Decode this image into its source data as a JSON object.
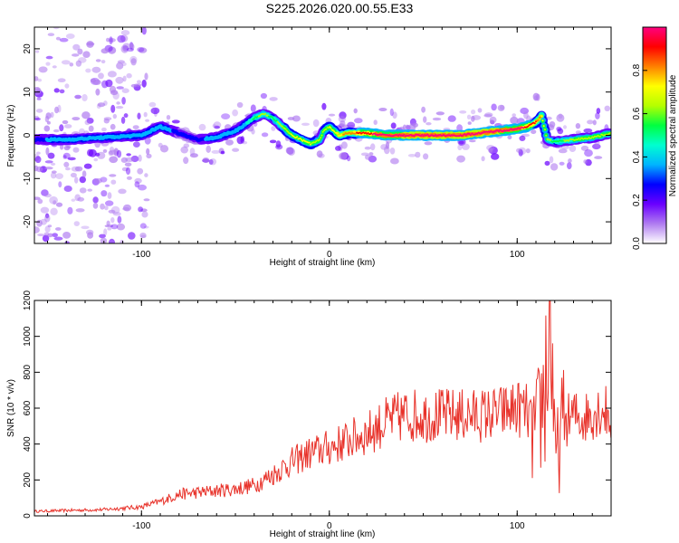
{
  "title": "S225.2026.020.00.55.E33",
  "chart_data": [
    {
      "type": "heatmap",
      "xlabel": "Height of straight line (km)",
      "ylabel": "Frequency (Hz)",
      "xlim": [
        -157,
        150
      ],
      "ylim": [
        -25,
        25
      ],
      "xticks": [
        -100,
        0,
        100
      ],
      "xtick_labels": [
        "-100",
        "0",
        "100"
      ],
      "yticks": [
        -20,
        -10,
        0,
        10,
        20
      ],
      "ytick_labels": [
        "-20",
        "-10",
        "0",
        "10",
        "20"
      ],
      "ridge": {
        "x": [
          -157,
          -140,
          -120,
          -100,
          -95,
          -90,
          -80,
          -70,
          -60,
          -50,
          -45,
          -40,
          -35,
          -30,
          -25,
          -20,
          -15,
          -10,
          -5,
          -3,
          0,
          5,
          10,
          20,
          30,
          40,
          50,
          60,
          70,
          80,
          90,
          100,
          105,
          110,
          113,
          116,
          120,
          130,
          140,
          150
        ],
        "y": [
          -1,
          -1,
          -0.5,
          0,
          1,
          2,
          0.5,
          -1,
          -0.5,
          1,
          2.5,
          4,
          5,
          4,
          2,
          0,
          -1,
          -2,
          -1,
          1,
          2,
          0,
          0.5,
          0.5,
          0,
          0,
          0,
          0,
          0,
          0.5,
          1,
          1.5,
          2,
          3,
          4.5,
          -1,
          -1.5,
          -1,
          -0.5,
          0.5
        ],
        "amplitude": [
          0.3,
          0.35,
          0.35,
          0.4,
          0.35,
          0.35,
          0.3,
          0.3,
          0.35,
          0.35,
          0.4,
          0.45,
          0.5,
          0.45,
          0.5,
          0.55,
          0.55,
          0.55,
          0.5,
          0.5,
          0.55,
          0.6,
          0.65,
          0.75,
          0.8,
          0.85,
          0.85,
          0.85,
          0.85,
          0.85,
          0.85,
          0.8,
          0.75,
          0.7,
          0.6,
          0.5,
          0.45,
          0.5,
          0.5,
          0.5
        ]
      },
      "colorbar": {
        "label": "Normalized spectral amplitude",
        "range": [
          0,
          1
        ],
        "ticks": [
          0.0,
          0.2,
          0.4,
          0.6,
          0.8
        ],
        "tick_labels": [
          "0.0",
          "0.2",
          "0.4",
          "0.6",
          "0.8"
        ],
        "colors": [
          "#ffffff",
          "#b07cf0",
          "#6a00ff",
          "#0000ff",
          "#00b4ff",
          "#00ffd0",
          "#00ff40",
          "#b4ff00",
          "#ffff00",
          "#ff8000",
          "#ff0000",
          "#ff0080"
        ]
      }
    },
    {
      "type": "line",
      "xlabel": "Height of straight line (km)",
      "ylabel": "SNR (10 * v/v)",
      "xlim": [
        -157,
        150
      ],
      "ylim": [
        0,
        1200
      ],
      "xticks": [
        -100,
        0,
        100
      ],
      "xtick_labels": [
        "-100",
        "0",
        "100"
      ],
      "yticks": [
        0,
        200,
        400,
        600,
        800,
        1000,
        1200
      ],
      "ytick_labels": [
        "0",
        "200",
        "400",
        "600",
        "800",
        "1000",
        "1200"
      ],
      "color": "#e8322a",
      "x": [
        -157,
        -140,
        -120,
        -100,
        -90,
        -80,
        -70,
        -60,
        -50,
        -40,
        -30,
        -20,
        -10,
        0,
        10,
        20,
        30,
        40,
        50,
        60,
        70,
        80,
        90,
        100,
        105,
        110,
        113,
        116,
        118,
        120,
        125,
        130,
        135,
        140,
        145,
        150
      ],
      "y": [
        25,
        30,
        35,
        50,
        80,
        120,
        130,
        140,
        150,
        170,
        230,
        300,
        350,
        380,
        420,
        460,
        520,
        560,
        560,
        560,
        560,
        560,
        570,
        600,
        580,
        450,
        600,
        850,
        1150,
        300,
        520,
        560,
        540,
        580,
        600,
        550
      ]
    }
  ]
}
